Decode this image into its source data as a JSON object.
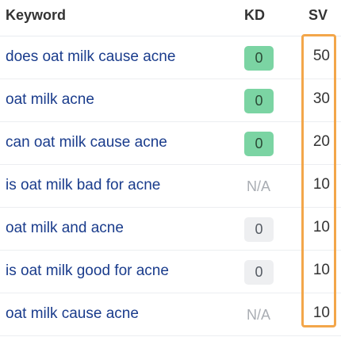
{
  "header": {
    "keyword": "Keyword",
    "kd": "KD",
    "sv": "SV"
  },
  "rows": [
    {
      "keyword": "does oat milk cause acne",
      "kd": "0",
      "kd_style": "green",
      "sv": "50"
    },
    {
      "keyword": "oat milk acne",
      "kd": "0",
      "kd_style": "green",
      "sv": "30"
    },
    {
      "keyword": "can oat milk cause acne",
      "kd": "0",
      "kd_style": "green",
      "sv": "20"
    },
    {
      "keyword": "is oat milk bad for acne",
      "kd": "N/A",
      "kd_style": "na",
      "sv": "10"
    },
    {
      "keyword": "oat milk and acne",
      "kd": "0",
      "kd_style": "gray",
      "sv": "10"
    },
    {
      "keyword": "is oat milk good for acne",
      "kd": "0",
      "kd_style": "gray",
      "sv": "10"
    },
    {
      "keyword": "oat milk cause acne",
      "kd": "N/A",
      "kd_style": "na",
      "sv": "10"
    }
  ],
  "colors": {
    "link": "#1a3c8c",
    "kd_green": "#7bd4a3",
    "kd_gray": "#eeeff1",
    "highlight_border": "#f3a64a"
  }
}
